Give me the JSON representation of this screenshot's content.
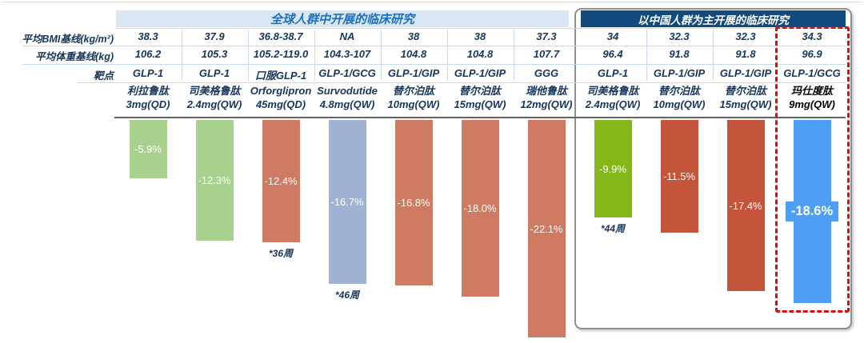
{
  "titles": {
    "global": "全球人群中开展的临床研究",
    "china": "以中国人群为主开展的临床研究"
  },
  "row_labels": {
    "bmi": "平均BMI基线(kg/m²)",
    "weight": "平均体重基线(kg)",
    "target": "靶点"
  },
  "colors": {
    "light_green": "#a9d18e",
    "salmon": "#cf7a63",
    "blue_gray": "#a0b2d3",
    "vivid_green": "#84b81a",
    "dark_red": "#c4553a",
    "bright_blue": "#4d9ff5",
    "global_band_bg": "#d9e7f5",
    "global_title_text": "#1a6fc4",
    "china_band_bg": "#124a7d",
    "navy_text": "#17365d",
    "highlight_dash": "#d50f0f"
  },
  "columns": [
    {
      "group": "global",
      "bmi": "38.3",
      "weight": "106.2",
      "target": "GLP-1",
      "drug": "利拉鲁肽",
      "dose": "3mg(QD)",
      "label": "-5.9%",
      "change_pct": -5.9,
      "color_key": "light_green",
      "note": "",
      "highlight": false
    },
    {
      "group": "global",
      "bmi": "37.9",
      "weight": "105.3",
      "target": "GLP-1",
      "drug": "司美格鲁肽",
      "dose": "2.4mg(QW)",
      "label": "-12.3%",
      "change_pct": -12.3,
      "color_key": "light_green",
      "note": "",
      "highlight": false
    },
    {
      "group": "global",
      "bmi": "36.8-38.7",
      "weight": "105.2-119.0",
      "target": "口服GLP-1",
      "drug": "Orforglipron",
      "dose": "45mg(QD)",
      "label": "-12.4%",
      "change_pct": -12.4,
      "color_key": "salmon",
      "note": "*36周",
      "highlight": false
    },
    {
      "group": "global",
      "bmi": "NA",
      "weight": "104.3-107",
      "target": "GLP-1/GCG",
      "drug": "Survodutide",
      "dose": "4.8mg(QW)",
      "label": "-16.7%",
      "change_pct": -16.7,
      "color_key": "blue_gray",
      "note": "*46周",
      "highlight": false
    },
    {
      "group": "global",
      "bmi": "38",
      "weight": "104.8",
      "target": "GLP-1/GIP",
      "drug": "替尔泊肽",
      "dose": "10mg(QW)",
      "label": "-16.8%",
      "change_pct": -16.8,
      "color_key": "salmon",
      "note": "",
      "highlight": false
    },
    {
      "group": "global",
      "bmi": "38",
      "weight": "104.8",
      "target": "GLP-1/GIP",
      "drug": "替尔泊肽",
      "dose": "15mg(QW)",
      "label": "-18.0%",
      "change_pct": -18.0,
      "color_key": "salmon",
      "note": "",
      "highlight": false
    },
    {
      "group": "global",
      "bmi": "37.3",
      "weight": "107.7",
      "target": "GGG",
      "drug": "瑞他鲁肽",
      "dose": "12mg(QW)",
      "label": "-22.1%",
      "change_pct": -22.1,
      "color_key": "salmon",
      "note": "",
      "highlight": false
    },
    {
      "group": "china",
      "bmi": "34",
      "weight": "96.4",
      "target": "GLP-1",
      "drug": "司美格鲁肽",
      "dose": "2.4mg(QW)",
      "label": "-9.9%",
      "change_pct": -9.9,
      "color_key": "vivid_green",
      "note": "*44周",
      "highlight": false
    },
    {
      "group": "china",
      "bmi": "32.3",
      "weight": "91.8",
      "target": "GLP-1/GIP",
      "drug": "替尔泊肽",
      "dose": "10mg(QW)",
      "label": "-11.5%",
      "change_pct": -11.5,
      "color_key": "dark_red",
      "note": "",
      "highlight": false
    },
    {
      "group": "china",
      "bmi": "32.3",
      "weight": "91.8",
      "target": "GLP-1/GIP",
      "drug": "替尔泊肽",
      "dose": "15mg(QW)",
      "label": "-17.4%",
      "change_pct": -17.4,
      "color_key": "dark_red",
      "note": "",
      "highlight": false
    },
    {
      "group": "china",
      "bmi": "34.3",
      "weight": "96.9",
      "target": "GLP-1/GCG",
      "drug": "玛仕度肽",
      "dose": "9mg(QW)",
      "label": "-18.6%",
      "change_pct": -18.6,
      "color_key": "bright_blue",
      "note": "",
      "highlight": true
    }
  ],
  "chart_data": {
    "type": "bar",
    "title": "",
    "value_format": "percent",
    "baseline": 0,
    "ylim": [
      -23,
      0
    ],
    "gridlines": false,
    "data_labels": true,
    "categories": [
      "利拉鲁肽 3mg(QD)",
      "司美格鲁肽 2.4mg(QW)",
      "Orforglipron 45mg(QD)",
      "Survodutide 4.8mg(QW)",
      "替尔泊肽 10mg(QW)",
      "替尔泊肽 15mg(QW)",
      "瑞他鲁肽 12mg(QW)",
      "司美格鲁肽 2.4mg(QW)",
      "替尔泊肽 10mg(QW)",
      "替尔泊肽 15mg(QW)",
      "玛仕度肽 9mg(QW)"
    ],
    "values": [
      -5.9,
      -12.3,
      -12.4,
      -16.7,
      -16.8,
      -18.0,
      -22.1,
      -9.9,
      -11.5,
      -17.4,
      -18.6
    ],
    "bar_colors": [
      "#a9d18e",
      "#a9d18e",
      "#cf7a63",
      "#a0b2d3",
      "#cf7a63",
      "#cf7a63",
      "#cf7a63",
      "#84b81a",
      "#c4553a",
      "#c4553a",
      "#4d9ff5"
    ],
    "footnotes": [
      {
        "index": 2,
        "text": "*36周"
      },
      {
        "index": 3,
        "text": "*46周"
      },
      {
        "index": 7,
        "text": "*44周"
      }
    ],
    "groups": [
      {
        "name": "全球人群中开展的临床研究",
        "indices": [
          0,
          1,
          2,
          3,
          4,
          5,
          6
        ]
      },
      {
        "name": "以中国人群为主开展的临床研究",
        "indices": [
          7,
          8,
          9,
          10
        ]
      }
    ],
    "highlighted_category": "玛仕度肽 9mg(QW)",
    "table": {
      "row_labels": [
        "平均BMI基线(kg/m²)",
        "平均体重基线(kg)",
        "靶点"
      ],
      "rows": {
        "bmi": [
          "38.3",
          "37.9",
          "36.8-38.7",
          "NA",
          "38",
          "38",
          "37.3",
          "34",
          "32.3",
          "32.3",
          "34.3"
        ],
        "weight": [
          "106.2",
          "105.3",
          "105.2-119.0",
          "104.3-107",
          "104.8",
          "104.8",
          "107.7",
          "96.4",
          "91.8",
          "91.8",
          "96.9"
        ],
        "target": [
          "GLP-1",
          "GLP-1",
          "口服GLP-1",
          "GLP-1/GCG",
          "GLP-1/GIP",
          "GLP-1/GIP",
          "GGG",
          "GLP-1",
          "GLP-1/GIP",
          "GLP-1/GIP",
          "GLP-1/GCG"
        ]
      }
    }
  }
}
